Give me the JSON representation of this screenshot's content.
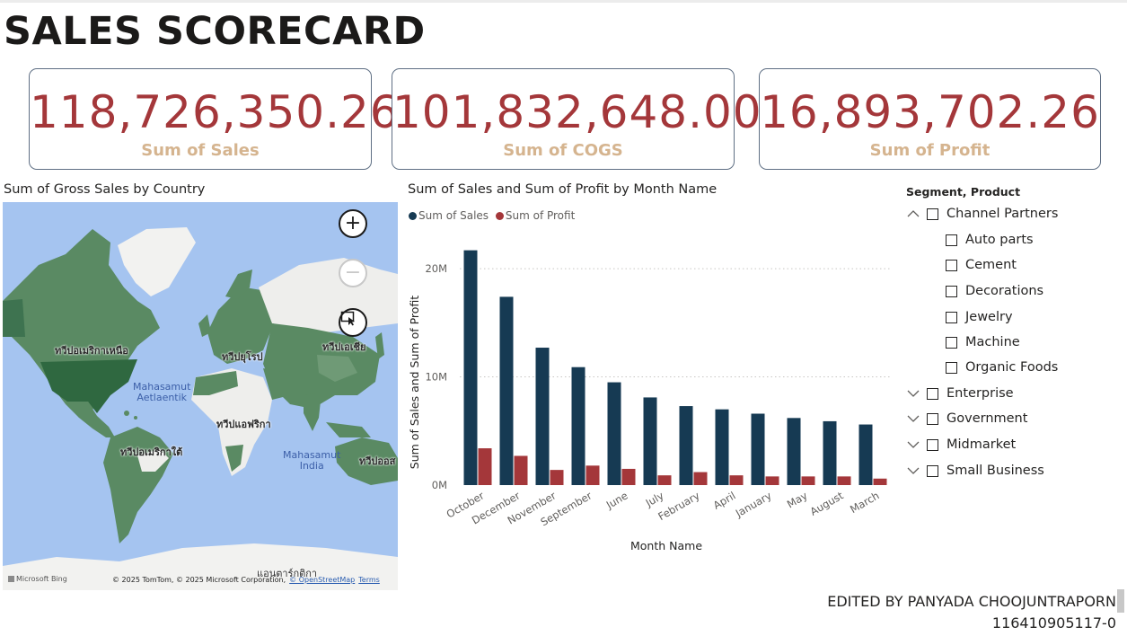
{
  "title": "SALES SCORECARD",
  "kpis": [
    {
      "value": "118,726,350.26",
      "label": "Sum of  Sales"
    },
    {
      "value": "101,832,648.00",
      "label": "Sum of COGS"
    },
    {
      "value": "16,893,702.26",
      "label": "Sum of Profit"
    }
  ],
  "map": {
    "title": "Sum of Gross Sales by Country",
    "region_labels": {
      "north_america": "ทวีปอเมริกาเหนือ",
      "europe": "ทวีปยุโรป",
      "asia": "ทวีปเอเชีย",
      "africa": "ทวีปแอฟริกา",
      "south_america": "ทวีปอเมริกาใต้",
      "oceania": "ทวีปออส",
      "antarctica": "แอนตาร์กติกา"
    },
    "ocean_labels": {
      "atlantic_1": "Mahasamut",
      "atlantic_2": "Aetlaentik",
      "indian_1": "Mahasamut",
      "indian_2": "India"
    },
    "controls": {
      "zoom_in": "+",
      "zoom_out": "−"
    },
    "attribution": "© 2025 TomTom, © 2025 Microsoft Corporation,",
    "attribution_link": "© OpenStreetMap",
    "terms": "Terms",
    "bing": "Microsoft Bing",
    "colors": {
      "ocean": "#a5c4f0",
      "land": "#eeeeec",
      "highlight": "#5a8a63",
      "highlight_dark": "#2f6840"
    }
  },
  "chart_data": {
    "type": "bar",
    "title": "Sum of Sales and Sum of Profit by Month Name",
    "xlabel": "Month Name",
    "ylabel": "Sum of Sales and Sum of Profit",
    "categories": [
      "October",
      "December",
      "November",
      "September",
      "June",
      "July",
      "February",
      "April",
      "January",
      "May",
      "August",
      "March"
    ],
    "series": [
      {
        "name": "Sum of  Sales",
        "color": "#163a53",
        "values": [
          21.7,
          17.4,
          12.7,
          10.9,
          9.5,
          8.1,
          7.3,
          7.0,
          6.6,
          6.2,
          5.9,
          5.6
        ]
      },
      {
        "name": "Sum of Profit",
        "color": "#a4373a",
        "values": [
          3.4,
          2.7,
          1.4,
          1.8,
          1.5,
          0.9,
          1.2,
          0.9,
          0.8,
          0.8,
          0.8,
          0.6
        ]
      }
    ],
    "unit": "M",
    "ylim": [
      0,
      22
    ],
    "yticks": [
      "0M",
      "10M",
      "20M"
    ],
    "ytick_values": [
      0,
      10,
      20
    ],
    "grid": true,
    "legend": "top-left"
  },
  "slicer": {
    "title": "Segment, Product",
    "items": [
      {
        "label": "Channel Partners",
        "level": 0,
        "expanded": true
      },
      {
        "label": "Auto parts",
        "level": 1
      },
      {
        "label": "Cement",
        "level": 1
      },
      {
        "label": "Decorations",
        "level": 1
      },
      {
        "label": "Jewelry",
        "level": 1
      },
      {
        "label": "Machine",
        "level": 1
      },
      {
        "label": "Organic Foods",
        "level": 1
      },
      {
        "label": "Enterprise",
        "level": 0,
        "expanded": false
      },
      {
        "label": "Government",
        "level": 0,
        "expanded": false
      },
      {
        "label": "Midmarket",
        "level": 0,
        "expanded": false
      },
      {
        "label": "Small Business",
        "level": 0,
        "expanded": false
      }
    ]
  },
  "footer": {
    "line1": "EDITED BY PANYADA CHOOJUNTRAPORN",
    "line2": "116410905117-0"
  }
}
